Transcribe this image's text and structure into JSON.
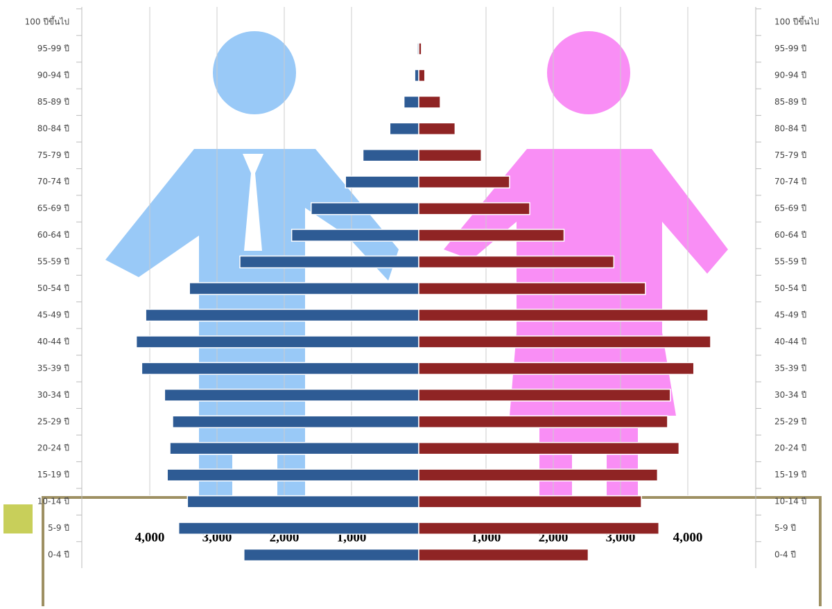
{
  "chart_data": {
    "type": "population-pyramid",
    "categories": [
      "100 ปีขึ้นไป",
      "95-99 ปี",
      "90-94 ปี",
      "85-89 ปี",
      "80-84 ปี",
      "75-79 ปี",
      "70-74 ปี",
      "65-69 ปี",
      "60-64 ปี",
      "55-59 ปี",
      "50-54 ปี",
      "45-49 ปี",
      "40-44 ปี",
      "35-39 ปี",
      "30-34 ปี",
      "25-29 ปี",
      "20-24 ปี",
      "15-19 ปี",
      "10-14 ปี",
      "5-9 ปี",
      "0-4 ปี"
    ],
    "series": [
      {
        "color": "#2e5b94",
        "values": [
          5,
          20,
          60,
          220,
          430,
          830,
          1090,
          1600,
          1890,
          2660,
          3410,
          4060,
          4200,
          4120,
          3780,
          3660,
          3700,
          3740,
          3440,
          3570,
          2600
        ]
      },
      {
        "color": "#8f2424",
        "values": [
          5,
          40,
          90,
          320,
          540,
          930,
          1350,
          1650,
          2160,
          2900,
          3370,
          4300,
          4340,
          4090,
          3740,
          3700,
          3870,
          3550,
          3310,
          3570,
          2520
        ]
      }
    ],
    "xlim": [
      0,
      5000
    ],
    "xticks": [
      {
        "value": 1000,
        "label": "1,000"
      },
      {
        "value": 2000,
        "label": "2,000"
      },
      {
        "value": 3000,
        "label": "3,000"
      },
      {
        "value": 4000,
        "label": "4,000"
      }
    ],
    "grid": true
  }
}
